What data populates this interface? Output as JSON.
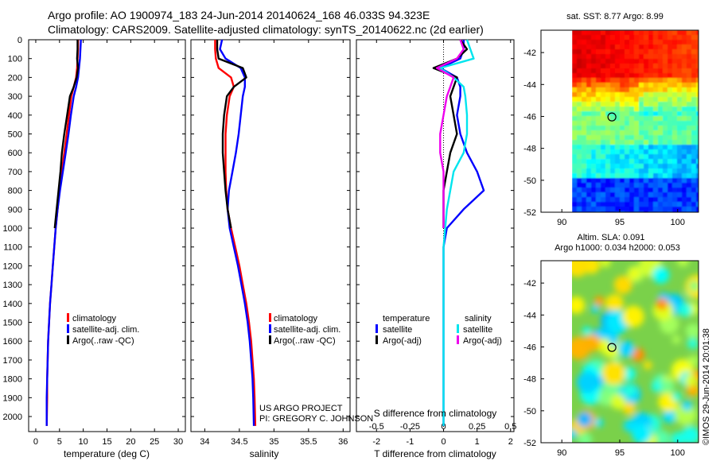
{
  "title": {
    "line1": "Argo profile: AO 1900974_183 24-Jun-2014 20140624_168 46.033S 94.323E",
    "line2": "Climatology: CARS2009. Satellite-adjusted climatology: synTS_20140622.nc (2d earlier)"
  },
  "credit": {
    "line1": "US ARGO PROJECT",
    "line2": "PI: GREGORY C. JOHNSON"
  },
  "side_label": "©IMOS 29-Jun-2014 20:01:38",
  "colors": {
    "climatology": "#ff0000",
    "satellite": "#0000ff",
    "argo": "#000000",
    "sal_satellite": "#00e5ee",
    "sal_argo": "#ee00ee"
  },
  "chart_data": [
    {
      "type": "line",
      "name": "temperature",
      "xlabel": "temperature (deg C)",
      "xlim": [
        -1.5,
        31.5
      ],
      "xticks": [
        "0",
        "5",
        "10",
        "15",
        "20",
        "25",
        "30"
      ],
      "ylim": [
        0,
        2080
      ],
      "yticks": [
        "0",
        "100",
        "200",
        "300",
        "400",
        "500",
        "600",
        "700",
        "800",
        "900",
        "1000",
        "1100",
        "1200",
        "1300",
        "1400",
        "1500",
        "1600",
        "1700",
        "1800",
        "1900",
        "2000"
      ],
      "legend": [
        "climatology",
        "satellite-adj. clim.",
        "Argo(..raw -QC)"
      ],
      "series": [
        {
          "name": "climatology",
          "color": "#ff0000",
          "x": [
            8.9,
            8.9,
            8.8,
            8.7,
            8.5,
            8.0,
            7.5,
            7.0,
            6.5,
            6.0,
            5.5,
            5.0,
            4.6,
            4.2,
            3.9,
            3.6,
            3.3,
            3.0,
            2.8,
            2.6,
            2.5,
            2.4,
            2.4,
            2.3
          ],
          "y": [
            0,
            50,
            100,
            150,
            200,
            250,
            300,
            400,
            500,
            600,
            700,
            800,
            900,
            1000,
            1100,
            1200,
            1300,
            1400,
            1500,
            1600,
            1700,
            1800,
            1900,
            2050
          ]
        },
        {
          "name": "satellite-adj. clim.",
          "color": "#0000ff",
          "x": [
            9.5,
            9.4,
            9.3,
            9.1,
            8.9,
            8.5,
            8.0,
            7.4,
            6.9,
            6.3,
            5.7,
            5.1,
            4.6,
            4.2,
            3.9,
            3.6,
            3.3,
            3.0,
            2.8,
            2.6,
            2.5,
            2.4,
            2.3,
            2.3
          ],
          "y": [
            0,
            50,
            100,
            150,
            200,
            250,
            300,
            400,
            500,
            600,
            700,
            800,
            900,
            1000,
            1100,
            1200,
            1300,
            1400,
            1500,
            1600,
            1700,
            1800,
            1900,
            2050
          ]
        },
        {
          "name": "Argo(..raw -QC)",
          "color": "#000000",
          "x": [
            8.8,
            8.8,
            8.7,
            8.9,
            8.6,
            8.0,
            7.2,
            6.6,
            6.0,
            5.5,
            5.2,
            4.8,
            4.4,
            4.0
          ],
          "y": [
            0,
            50,
            100,
            150,
            200,
            250,
            300,
            400,
            500,
            600,
            700,
            800,
            900,
            1000
          ]
        }
      ]
    },
    {
      "type": "line",
      "name": "salinity",
      "xlabel": "salinity",
      "xlim": [
        33.8,
        36.1
      ],
      "xticks": [
        "34",
        "34.5",
        "35",
        "35.5",
        "36"
      ],
      "ylim": [
        0,
        2080
      ],
      "legend": [
        "climatology",
        "satellite-adj. clim.",
        "Argo(..raw -QC)"
      ],
      "series": [
        {
          "name": "climatology",
          "color": "#ff0000",
          "x": [
            34.15,
            34.15,
            34.16,
            34.2,
            34.38,
            34.42,
            34.36,
            34.32,
            34.3,
            34.3,
            34.3,
            34.31,
            34.33,
            34.38,
            34.44,
            34.5,
            34.55,
            34.6,
            34.64,
            34.67,
            34.69,
            34.71,
            34.72,
            34.73
          ],
          "y": [
            0,
            50,
            100,
            150,
            200,
            250,
            300,
            400,
            500,
            600,
            700,
            800,
            900,
            1000,
            1100,
            1200,
            1300,
            1400,
            1500,
            1600,
            1700,
            1800,
            1900,
            2050
          ]
        },
        {
          "name": "satellite-adj. clim.",
          "color": "#0000ff",
          "x": [
            34.25,
            34.22,
            34.3,
            34.52,
            34.58,
            34.58,
            34.55,
            34.52,
            34.49,
            34.45,
            34.4,
            34.35,
            34.33,
            34.36,
            34.42,
            34.48,
            34.53,
            34.58,
            34.62,
            34.65,
            34.67,
            34.69,
            34.7,
            34.71
          ],
          "y": [
            0,
            50,
            100,
            150,
            200,
            250,
            300,
            400,
            500,
            600,
            700,
            800,
            900,
            1000,
            1100,
            1200,
            1300,
            1400,
            1500,
            1600,
            1700,
            1800,
            1900,
            2050
          ]
        },
        {
          "name": "Argo(..raw -QC)",
          "color": "#000000",
          "x": [
            34.18,
            34.18,
            34.2,
            34.55,
            34.6,
            34.42,
            34.32,
            34.28,
            34.26,
            34.26,
            34.28,
            34.3,
            34.33,
            34.38
          ],
          "y": [
            0,
            50,
            100,
            150,
            200,
            250,
            300,
            400,
            500,
            600,
            700,
            800,
            900,
            1000
          ]
        }
      ]
    },
    {
      "type": "line",
      "name": "difference",
      "xlabel": "T difference from climatology",
      "xlabel_top": "S difference from climatology",
      "xlim": [
        -2.6,
        2.1
      ],
      "xticks": [
        "-2",
        "-1",
        "0",
        "1",
        "2"
      ],
      "xticks_top": [
        "-0.5",
        "-0.25",
        "0",
        "0.25",
        "0.5"
      ],
      "ylim": [
        0,
        2080
      ],
      "legend": {
        "temperature_header": "temperature",
        "salinity_header": "salinity",
        "t_sat": "satellite",
        "t_argo": "Argo(-adj)",
        "s_sat": "satellite",
        "s_argo": "Argo(-adj)"
      },
      "series": [
        {
          "name": "temperature satellite",
          "color": "#0000ff",
          "x": [
            0.6,
            0.6,
            0.5,
            -0.1,
            0.4,
            0.5,
            0.5,
            0.4,
            0.5,
            0.7,
            1.0,
            1.2,
            0.6,
            0.1,
            0.0,
            0.0,
            0.0,
            0.0,
            0.0,
            0.0,
            0.0,
            0.0,
            0.0
          ],
          "y": [
            0,
            50,
            100,
            150,
            200,
            250,
            300,
            400,
            500,
            600,
            700,
            800,
            900,
            1000,
            1100,
            1200,
            1300,
            1400,
            1500,
            1600,
            1700,
            1800,
            2050
          ]
        },
        {
          "name": "temperature Argo(-adj)",
          "color": "#000000",
          "x": [
            0.5,
            0.7,
            0.4,
            -0.3,
            0.4,
            0.3,
            0.2,
            0.3,
            0.4,
            0.2,
            0.1,
            0.0,
            0.0,
            0.0
          ],
          "y": [
            0,
            50,
            100,
            150,
            200,
            250,
            300,
            400,
            500,
            600,
            700,
            800,
            900,
            1000
          ]
        },
        {
          "name": "salinity satellite",
          "color": "#00e5ee",
          "x": [
            0.7,
            0.8,
            0.9,
            -0.1,
            0.3,
            0.6,
            0.65,
            0.7,
            0.7,
            0.6,
            0.3,
            0.2,
            0.1,
            0.05,
            0.0,
            0.0,
            0.0,
            0.0,
            0.0,
            0.0,
            0.0,
            0.0
          ],
          "y": [
            0,
            50,
            100,
            150,
            200,
            250,
            300,
            400,
            500,
            600,
            700,
            800,
            900,
            1000,
            1100,
            1200,
            1300,
            1400,
            1500,
            1600,
            1800,
            2050
          ]
        },
        {
          "name": "salinity Argo(-adj)",
          "color": "#ee00ee",
          "x": [
            0.5,
            0.6,
            0.4,
            -0.2,
            0.3,
            0.2,
            0.1,
            0.0,
            -0.1,
            -0.1,
            0.0,
            0.0,
            0.0,
            0.0
          ],
          "y": [
            0,
            50,
            100,
            150,
            200,
            250,
            300,
            400,
            500,
            600,
            700,
            800,
            900,
            1000
          ]
        }
      ]
    },
    {
      "type": "heatmap",
      "name": "sst-map",
      "title": "sat. SST: 8.77 Argo: 8.99",
      "xticks": [
        "90",
        "95",
        "100"
      ],
      "yticks": [
        "-42",
        "-44",
        "-46",
        "-48",
        "-50",
        "-52"
      ],
      "xlim": [
        88.2,
        101.8
      ],
      "ylim": [
        -52,
        -40.6
      ],
      "marker": {
        "lon": 94.323,
        "lat": -46.033
      }
    },
    {
      "type": "heatmap",
      "name": "sla-map",
      "title_line1": "Altim. SLA: 0.091",
      "title_line2": "Argo h1000: 0.034 h2000: 0.053",
      "xticks": [
        "90",
        "95",
        "100"
      ],
      "yticks": [
        "-42",
        "-44",
        "-46",
        "-48",
        "-50",
        "-52"
      ],
      "xlim": [
        88.2,
        101.8
      ],
      "ylim": [
        -52,
        -40.6
      ],
      "marker": {
        "lon": 94.323,
        "lat": -46.033
      }
    }
  ]
}
